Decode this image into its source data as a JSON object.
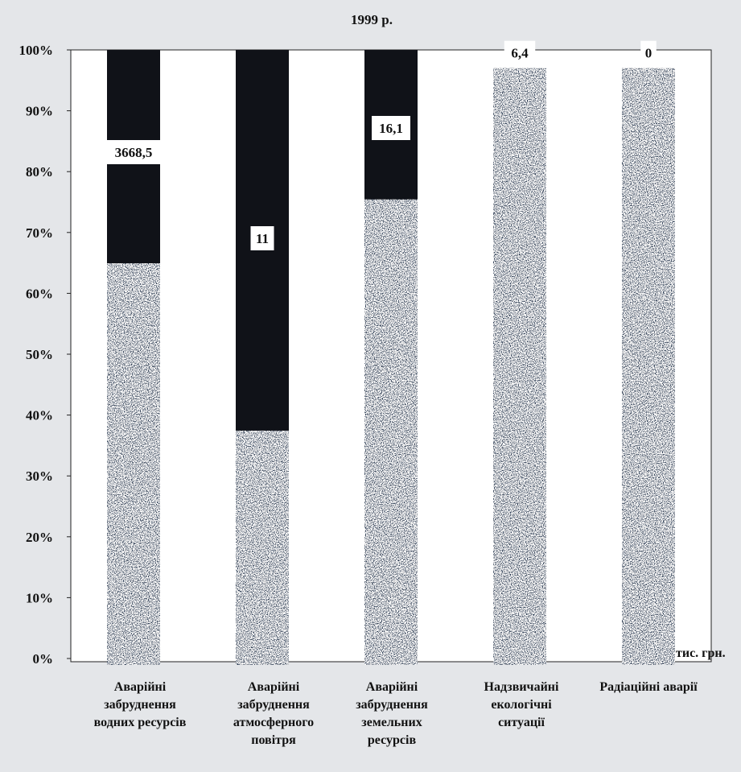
{
  "chart_data": {
    "type": "bar",
    "stacked": true,
    "percent_scale": true,
    "title": "1999 р.",
    "unit_label": "тис. грн.",
    "categories": [
      [
        "Аварійні",
        "забруднення",
        "водних ресурсів"
      ],
      [
        "Аварійні",
        "забруднення",
        "атмосферного",
        "повітря"
      ],
      [
        "Аварійні",
        "забруднення",
        "земельних",
        "ресурсів"
      ],
      [
        "Надзвичайні",
        "екологічні",
        "ситуації"
      ],
      [
        "Радіаційні аварії"
      ]
    ],
    "series": [
      {
        "values": [
          66,
          38.5,
          76.5,
          97,
          97
        ],
        "color": "#2c3a52"
      },
      {
        "values": [
          34,
          61.5,
          23.5,
          0,
          0
        ],
        "color": "#101218"
      }
    ],
    "data_labels": [
      "3668,5",
      "11",
      "16,1",
      "6,4",
      "0"
    ],
    "y_ticks": [
      "0%",
      "10%",
      "20%",
      "30%",
      "40%",
      "50%",
      "60%",
      "70%",
      "80%",
      "90%",
      "100%"
    ],
    "ylim": [
      0,
      100
    ],
    "grid": false
  }
}
